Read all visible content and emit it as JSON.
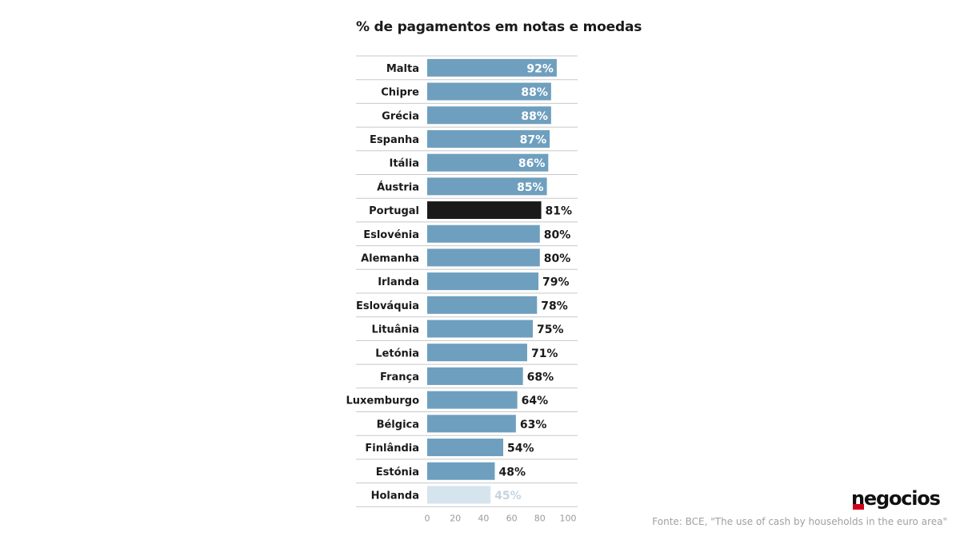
{
  "chart_data": {
    "type": "bar",
    "orientation": "horizontal",
    "title": "% de pagamentos em notas e moedas",
    "categories": [
      "Malta",
      "Chipre",
      "Grécia",
      "Espanha",
      "Itália",
      "Áustria",
      "Portugal",
      "Eslovénia",
      "Alemanha",
      "Irlanda",
      "Eslováquia",
      "Lituânia",
      "Letónia",
      "França",
      "Luxemburgo",
      "Bélgica",
      "Finlândia",
      "Estónia",
      "Holanda"
    ],
    "values": [
      92,
      88,
      88,
      87,
      86,
      85,
      81,
      80,
      80,
      79,
      78,
      75,
      71,
      68,
      64,
      63,
      54,
      48,
      45
    ],
    "value_labels": [
      "92%",
      "88%",
      "88%",
      "87%",
      "86%",
      "85%",
      "81%",
      "80%",
      "80%",
      "79%",
      "78%",
      "75%",
      "71%",
      "68%",
      "64%",
      "63%",
      "54%",
      "48%",
      "45%"
    ],
    "xlim": [
      0,
      100
    ],
    "xticks": [
      0,
      20,
      40,
      60,
      80,
      100
    ],
    "xtick_labels": [
      "0",
      "20",
      "40",
      "60",
      "80",
      "100"
    ],
    "grid": false,
    "colors": {
      "default": "#6f9fbe",
      "highlight": "#1a1a1a",
      "faded": "#d6e4ee",
      "separator": "#c8c8c8"
    },
    "highlight_category": "Portugal",
    "faded_category": "Holanda"
  },
  "source": "Fonte: BCE, \"The use of cash by households in the euro area\"",
  "logo": "negocios"
}
